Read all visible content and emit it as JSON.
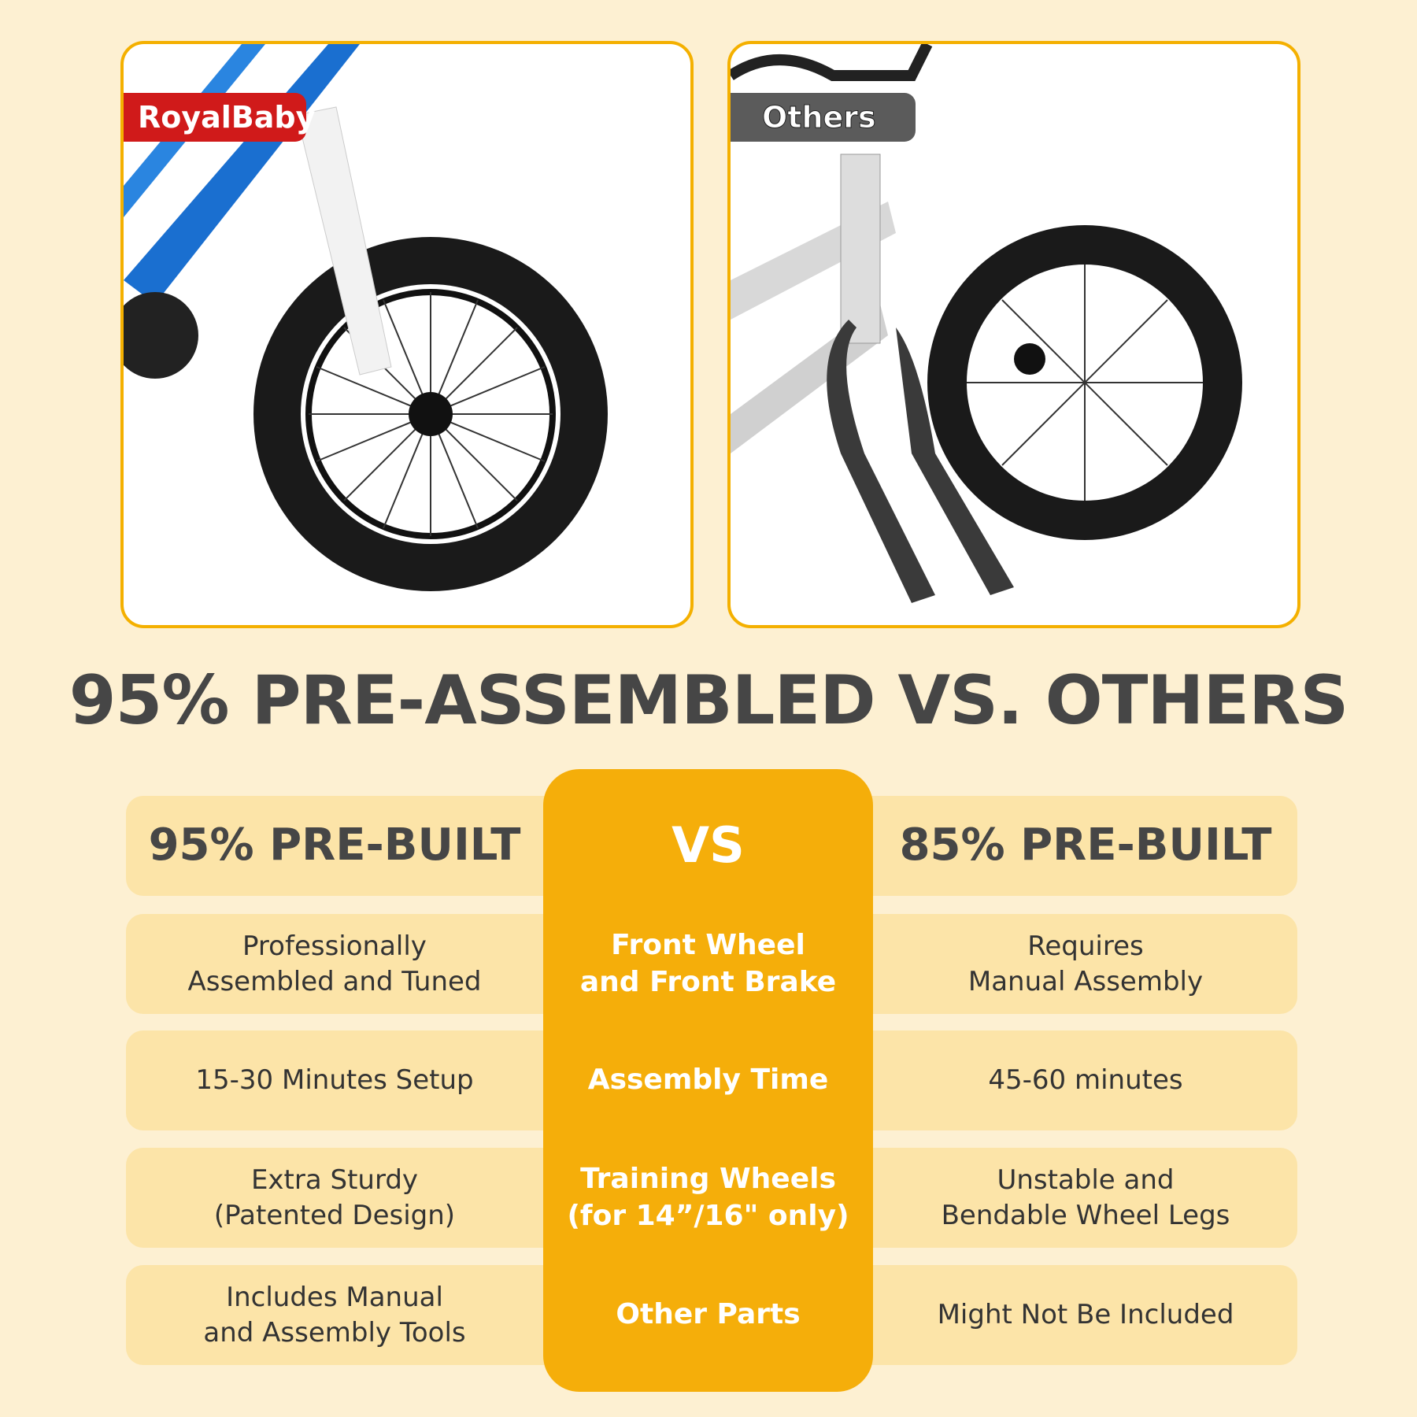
{
  "images": {
    "left_tag": "RoyalBaby",
    "right_tag": "Others"
  },
  "title": "95% PRE-ASSEMBLED VS. OTHERS",
  "table": {
    "header": {
      "left": "95% PRE-BUILT",
      "center": "VS",
      "right": "85% PRE-BUILT"
    },
    "rows": [
      {
        "left": "Professionally\nAssembled and Tuned",
        "center": "Front Wheel\nand Front Brake",
        "right": "Requires\nManual Assembly"
      },
      {
        "left": "15-30 Minutes Setup",
        "center": "Assembly Time",
        "right": "45-60 minutes"
      },
      {
        "left": "Extra Sturdy\n(Patented Design)",
        "center": "Training Wheels\n(for 14”/16\" only)",
        "right": "Unstable and\nBendable Wheel Legs"
      },
      {
        "left": "Includes Manual\nand Assembly Tools",
        "center": "Other Parts",
        "right": "Might Not Be Included"
      }
    ]
  },
  "colors": {
    "accent": "#f5ae0a",
    "row_bg": "#fce4a8",
    "page_bg": "#fdf0d2",
    "royalbaby_red": "#d01a1a",
    "others_gray": "#5b5b5b"
  }
}
